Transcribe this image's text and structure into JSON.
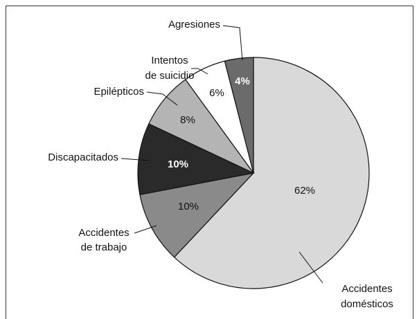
{
  "chart_data": {
    "type": "pie",
    "categories": [
      [
        "Accidentes",
        "domésticos"
      ],
      [
        "Accidentes",
        "de trabajo"
      ],
      [
        "Discapacitados"
      ],
      [
        "Epilépticos"
      ],
      [
        "Intentos",
        "de suicidio"
      ],
      [
        "Agresiones"
      ]
    ],
    "values": [
      62,
      10,
      10,
      8,
      6,
      4
    ],
    "value_labels": [
      "62%",
      "10%",
      "10%",
      "8%",
      "6%",
      "4%"
    ],
    "colors": [
      "#d9d9d9",
      "#8a8a8a",
      "#2a2a2a",
      "#b4b4b4",
      "#ffffff",
      "#6b6b6b"
    ]
  }
}
